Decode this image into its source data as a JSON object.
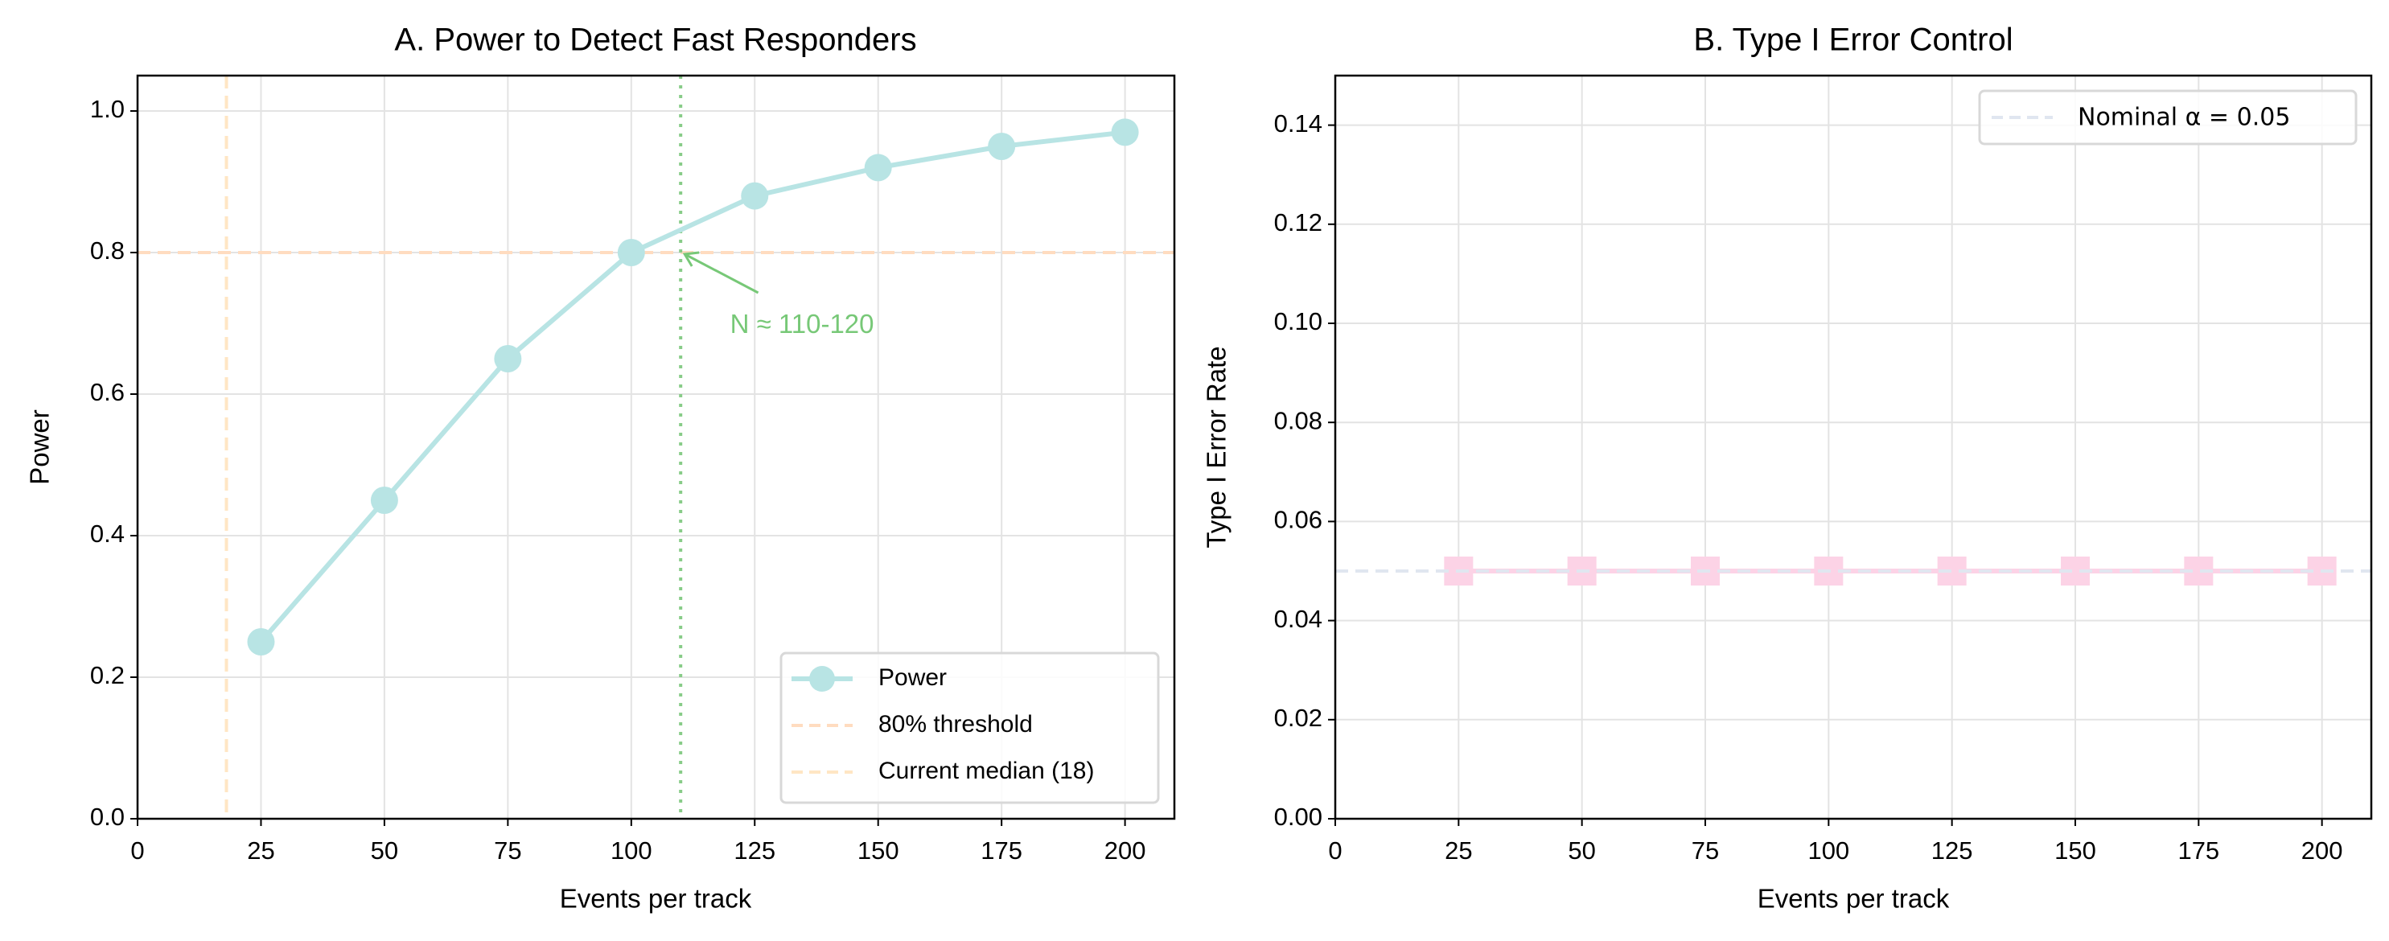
{
  "chart_data": [
    {
      "type": "line",
      "title": "A. Power to Detect Fast Responders",
      "xlabel": "Events per track",
      "ylabel": "Power",
      "xlim": [
        0,
        210
      ],
      "ylim": [
        0,
        1.05
      ],
      "xticks": [
        "0",
        "25",
        "50",
        "75",
        "100",
        "125",
        "150",
        "175",
        "200"
      ],
      "yticks": [
        "0.0",
        "0.2",
        "0.4",
        "0.6",
        "0.8",
        "1.0"
      ],
      "grid": true,
      "legend_position": "lower right",
      "series": [
        {
          "name": "Power",
          "x": [
            25,
            50,
            75,
            100,
            125,
            150,
            175,
            200
          ],
          "values": [
            0.25,
            0.45,
            0.65,
            0.8,
            0.88,
            0.92,
            0.95,
            0.97
          ],
          "color": "#b8e4e4",
          "marker": "circle"
        }
      ],
      "reference_lines": [
        {
          "name": "80% threshold",
          "orientation": "horizontal",
          "value": 0.8,
          "style": "dashed",
          "color": "#ffdcc0"
        },
        {
          "name": "Current median (18)",
          "orientation": "vertical",
          "value": 18,
          "style": "dashed",
          "color": "#ffe6c4"
        },
        {
          "orientation": "vertical",
          "value": 110,
          "style": "dotted",
          "color": "#88cc88"
        }
      ],
      "annotation": {
        "text": "N ≈ 110-120",
        "point": [
          110,
          0.8
        ],
        "text_at": [
          120,
          0.7
        ],
        "color": "#77c877"
      }
    },
    {
      "type": "line",
      "title": "B. Type I Error Control",
      "xlabel": "Events per track",
      "ylabel": "Type I Error Rate",
      "xlim": [
        0,
        210
      ],
      "ylim": [
        0,
        0.15
      ],
      "xticks": [
        "0",
        "25",
        "50",
        "75",
        "100",
        "125",
        "150",
        "175",
        "200"
      ],
      "yticks": [
        "0.00",
        "0.02",
        "0.04",
        "0.06",
        "0.08",
        "0.10",
        "0.12",
        "0.14"
      ],
      "grid": true,
      "legend_position": "upper right",
      "series": [
        {
          "x": [
            25,
            50,
            75,
            100,
            125,
            150,
            175,
            200
          ],
          "values": [
            0.05,
            0.05,
            0.05,
            0.05,
            0.05,
            0.05,
            0.05,
            0.05
          ],
          "color": "#fcd3e6",
          "marker": "square"
        }
      ],
      "reference_lines": [
        {
          "name": "Nominal α = 0.05",
          "orientation": "horizontal",
          "value": 0.05,
          "style": "dashed",
          "color": "#e0e6f0"
        }
      ]
    }
  ]
}
